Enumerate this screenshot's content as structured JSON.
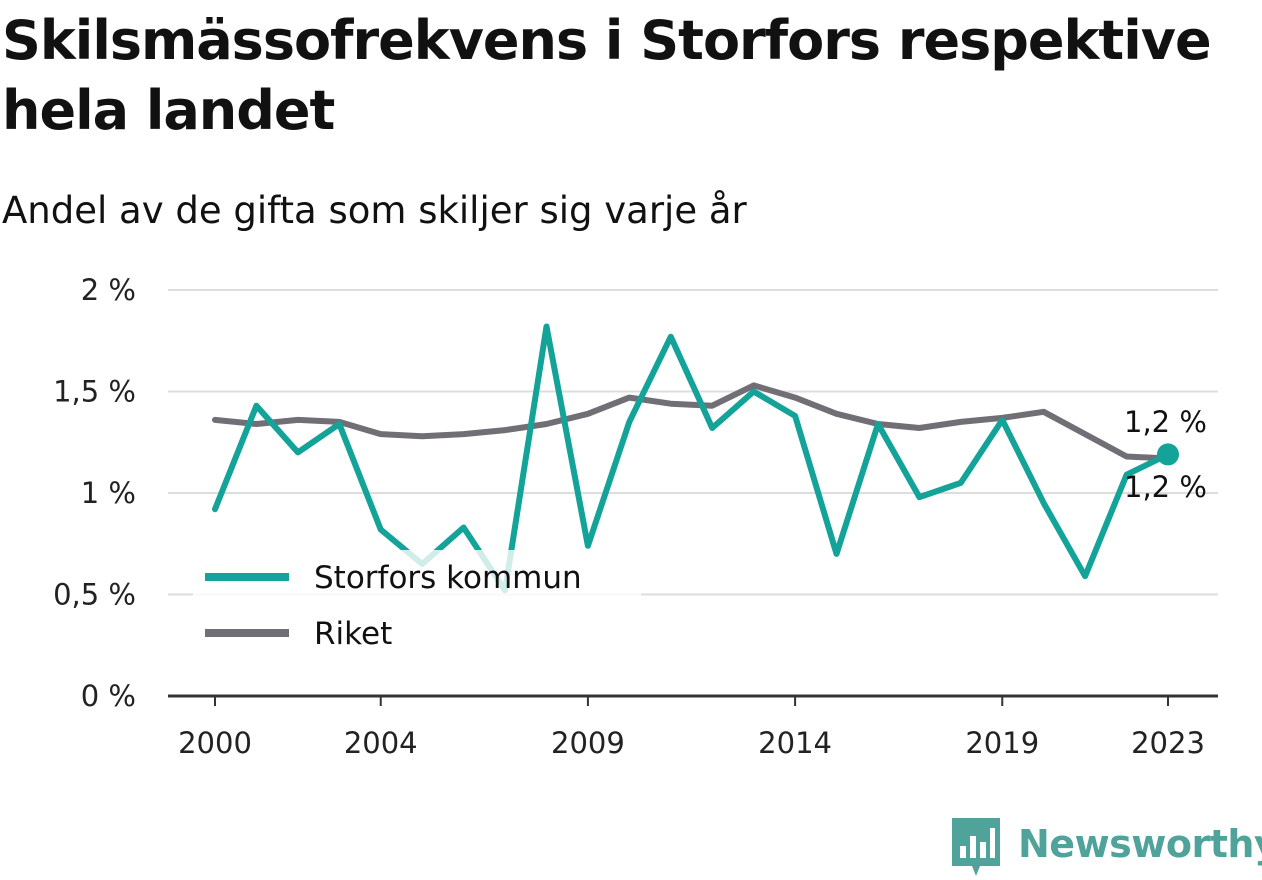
{
  "title": "Skilsmässofrekvens i Storfors respektive hela landet",
  "subtitle": "Andel av de gifta som skiljer sig varje år",
  "brand": {
    "name": "Newsworthy"
  },
  "colors": {
    "storfors": "#14a398",
    "riket": "#716e76",
    "grid": "#dddddd",
    "axis": "#333333",
    "brand": "#4fa39b"
  },
  "chart_data": {
    "type": "line",
    "x": [
      2000,
      2001,
      2002,
      2003,
      2004,
      2005,
      2006,
      2007,
      2008,
      2009,
      2010,
      2011,
      2012,
      2013,
      2014,
      2015,
      2016,
      2017,
      2018,
      2019,
      2020,
      2021,
      2022,
      2023
    ],
    "series": [
      {
        "name": "Storfors kommun",
        "color": "#14a398",
        "values": [
          0.92,
          1.43,
          1.2,
          1.34,
          0.82,
          0.65,
          0.83,
          0.52,
          1.82,
          0.74,
          1.35,
          1.77,
          1.32,
          1.5,
          1.38,
          0.7,
          1.34,
          0.98,
          1.05,
          1.36,
          0.95,
          0.59,
          1.09,
          1.19
        ]
      },
      {
        "name": "Riket",
        "color": "#716e76",
        "values": [
          1.36,
          1.34,
          1.36,
          1.35,
          1.29,
          1.28,
          1.29,
          1.31,
          1.34,
          1.39,
          1.47,
          1.44,
          1.43,
          1.53,
          1.47,
          1.39,
          1.34,
          1.32,
          1.35,
          1.37,
          1.4,
          1.29,
          1.18,
          1.17
        ]
      }
    ],
    "x_ticks": [
      2000,
      2004,
      2009,
      2014,
      2019,
      2023
    ],
    "y_ticks": [
      {
        "value": 0,
        "label": "0 %"
      },
      {
        "value": 0.5,
        "label": "0,5 %"
      },
      {
        "value": 1,
        "label": "1 %"
      },
      {
        "value": 1.5,
        "label": "1,5 %"
      },
      {
        "value": 2,
        "label": "2 %"
      }
    ],
    "ylim": [
      0,
      2
    ],
    "xlim": [
      2000,
      2023
    ],
    "grid": true,
    "legend": {
      "position": "bottom-left",
      "entries": [
        "Storfors kommun",
        "Riket"
      ]
    },
    "end_labels": {
      "storfors": "1,2 %",
      "riket": "1,2 %"
    }
  }
}
